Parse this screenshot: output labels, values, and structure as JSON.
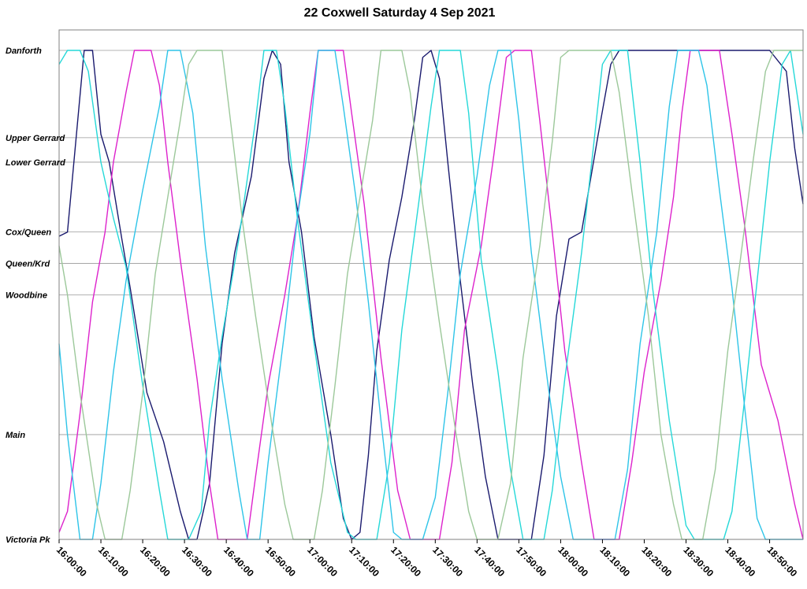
{
  "chart_data": {
    "type": "line",
    "title": "22 Coxwell Saturday 4 Sep 2021",
    "xlabel": "",
    "ylabel": "",
    "grid": true,
    "x_range": [
      "16:00:00",
      "18:58:00"
    ],
    "x_ticks": [
      "16:00:00",
      "16:10:00",
      "16:20:00",
      "16:30:00",
      "16:40:00",
      "16:50:00",
      "17:00:00",
      "17:10:00",
      "17:20:00",
      "17:30:00",
      "17:40:00",
      "17:50:00",
      "18:00:00",
      "18:10:00",
      "18:20:00",
      "18:30:00",
      "18:40:00",
      "18:50:00"
    ],
    "y_stops": [
      {
        "label": "Danforth",
        "km": 0.0
      },
      {
        "label": "Upper Gerrard",
        "km": 1.25
      },
      {
        "label": "Lower Gerrard",
        "km": 1.6
      },
      {
        "label": "Cox/Queen",
        "km": 2.6
      },
      {
        "label": "Queen/Krd",
        "km": 3.05
      },
      {
        "label": "Woodbine",
        "km": 3.5
      },
      {
        "label": "Main",
        "km": 5.5
      },
      {
        "label": "Victoria Pk",
        "km": 7.0
      }
    ],
    "series": [
      {
        "color": "#1a1a6e",
        "points": [
          [
            "16:00:00",
            2.66
          ],
          [
            "16:02:00",
            2.6
          ],
          [
            "16:06:00",
            0.0
          ],
          [
            "16:08:00",
            0.0
          ],
          [
            "16:10:00",
            1.2
          ],
          [
            "16:12:00",
            1.6
          ],
          [
            "16:15:00",
            2.7
          ],
          [
            "16:17:00",
            3.4
          ],
          [
            "16:21:00",
            4.9
          ],
          [
            "16:25:00",
            5.6
          ],
          [
            "16:29:00",
            6.6
          ],
          [
            "16:31:00",
            7.0
          ],
          [
            "16:33:00",
            7.0
          ],
          [
            "16:36:00",
            6.2
          ],
          [
            "16:39:00",
            4.2
          ],
          [
            "16:42:00",
            2.9
          ],
          [
            "16:46:00",
            1.8
          ],
          [
            "16:49:00",
            0.4
          ],
          [
            "16:51:00",
            0.0
          ],
          [
            "16:53:00",
            0.2
          ],
          [
            "16:55:00",
            1.6
          ],
          [
            "16:58:00",
            2.6
          ],
          [
            "17:01:00",
            4.1
          ],
          [
            "17:05:00",
            5.5
          ],
          [
            "17:08:00",
            6.7
          ],
          [
            "17:10:00",
            7.0
          ],
          [
            "17:12:00",
            6.9
          ],
          [
            "17:14:00",
            5.8
          ],
          [
            "17:16:00",
            4.3
          ],
          [
            "17:19:00",
            3.0
          ],
          [
            "17:22:00",
            2.1
          ],
          [
            "17:25:00",
            1.0
          ],
          [
            "17:27:00",
            0.1
          ],
          [
            "17:29:00",
            0.0
          ],
          [
            "17:31:00",
            0.4
          ],
          [
            "17:33:00",
            1.6
          ],
          [
            "17:36:00",
            3.3
          ],
          [
            "17:39:00",
            4.8
          ],
          [
            "17:42:00",
            6.1
          ],
          [
            "17:45:00",
            7.0
          ],
          [
            "17:53:00",
            7.0
          ],
          [
            "17:56:00",
            5.8
          ],
          [
            "17:59:00",
            3.8
          ],
          [
            "18:02:00",
            2.7
          ],
          [
            "18:05:00",
            2.6
          ],
          [
            "18:09:00",
            1.2
          ],
          [
            "18:12:00",
            0.2
          ],
          [
            "18:14:00",
            0.0
          ],
          [
            "18:24:00",
            0.0
          ],
          [
            "18:30:00",
            0.0
          ],
          [
            "18:35:00",
            0.0
          ],
          [
            "18:43:00",
            0.0
          ],
          [
            "18:50:00",
            0.0
          ],
          [
            "18:54:00",
            0.3
          ],
          [
            "18:56:00",
            1.4
          ],
          [
            "18:58:00",
            2.2
          ]
        ]
      },
      {
        "color": "#dd22cc",
        "points": [
          [
            "16:00:00",
            6.9
          ],
          [
            "16:02:00",
            6.6
          ],
          [
            "16:05:00",
            5.2
          ],
          [
            "16:08:00",
            3.6
          ],
          [
            "16:11:00",
            2.6
          ],
          [
            "16:13:00",
            1.6
          ],
          [
            "16:16:00",
            0.6
          ],
          [
            "16:18:00",
            0.0
          ],
          [
            "16:22:00",
            0.0
          ],
          [
            "16:24:00",
            0.5
          ],
          [
            "16:26:00",
            1.6
          ],
          [
            "16:29:00",
            3.0
          ],
          [
            "16:33:00",
            4.7
          ],
          [
            "16:36:00",
            6.2
          ],
          [
            "16:38:00",
            7.0
          ],
          [
            "16:45:00",
            7.0
          ],
          [
            "16:47:00",
            6.1
          ],
          [
            "16:50:00",
            4.8
          ],
          [
            "16:54:00",
            3.5
          ],
          [
            "16:57:00",
            2.4
          ],
          [
            "17:00:00",
            0.9
          ],
          [
            "17:02:00",
            0.0
          ],
          [
            "17:08:00",
            0.0
          ],
          [
            "17:10:00",
            0.9
          ],
          [
            "17:13:00",
            2.2
          ],
          [
            "17:17:00",
            4.4
          ],
          [
            "17:21:00",
            6.3
          ],
          [
            "17:24:00",
            7.0
          ],
          [
            "17:31:00",
            7.0
          ],
          [
            "17:34:00",
            5.9
          ],
          [
            "17:37:00",
            4.0
          ],
          [
            "17:41:00",
            2.8
          ],
          [
            "17:44:00",
            1.5
          ],
          [
            "17:47:00",
            0.1
          ],
          [
            "17:49:00",
            0.0
          ],
          [
            "17:53:00",
            0.0
          ],
          [
            "17:55:00",
            1.0
          ],
          [
            "17:58:00",
            2.6
          ],
          [
            "18:01:00",
            4.3
          ],
          [
            "18:05:00",
            5.9
          ],
          [
            "18:08:00",
            7.0
          ],
          [
            "18:14:00",
            7.0
          ],
          [
            "18:17:00",
            5.9
          ],
          [
            "18:20:00",
            4.6
          ],
          [
            "18:24:00",
            3.3
          ],
          [
            "18:27:00",
            2.1
          ],
          [
            "18:29:00",
            0.9
          ],
          [
            "18:31:00",
            0.0
          ],
          [
            "18:38:00",
            0.0
          ],
          [
            "18:41:00",
            1.2
          ],
          [
            "18:44:00",
            2.5
          ],
          [
            "18:48:00",
            4.5
          ],
          [
            "18:52:00",
            5.3
          ],
          [
            "18:56:00",
            6.5
          ],
          [
            "18:58:00",
            7.0
          ]
        ]
      },
      {
        "color": "#25d8d8",
        "points": [
          [
            "16:00:00",
            0.2
          ],
          [
            "16:02:00",
            0.0
          ],
          [
            "16:05:00",
            0.0
          ],
          [
            "16:07:00",
            0.3
          ],
          [
            "16:10:00",
            1.6
          ],
          [
            "16:13:00",
            2.4
          ],
          [
            "16:16:00",
            3.1
          ],
          [
            "16:20:00",
            4.8
          ],
          [
            "16:24:00",
            6.3
          ],
          [
            "16:26:00",
            7.0
          ],
          [
            "16:31:00",
            7.0
          ],
          [
            "16:34:00",
            6.6
          ],
          [
            "16:36:00",
            5.3
          ],
          [
            "16:39:00",
            4.1
          ],
          [
            "16:43:00",
            2.7
          ],
          [
            "16:47:00",
            1.0
          ],
          [
            "16:49:00",
            0.0
          ],
          [
            "16:52:00",
            0.0
          ],
          [
            "16:54:00",
            0.8
          ],
          [
            "16:57:00",
            2.4
          ],
          [
            "17:01:00",
            4.2
          ],
          [
            "17:05:00",
            5.9
          ],
          [
            "17:09:00",
            6.9
          ],
          [
            "17:11:00",
            7.0
          ],
          [
            "17:16:00",
            7.0
          ],
          [
            "17:19:00",
            5.9
          ],
          [
            "17:22:00",
            4.0
          ],
          [
            "17:26:00",
            2.2
          ],
          [
            "17:29:00",
            0.8
          ],
          [
            "17:31:00",
            0.0
          ],
          [
            "17:36:00",
            0.0
          ],
          [
            "17:38:00",
            0.9
          ],
          [
            "17:41:00",
            3.0
          ],
          [
            "17:45:00",
            4.6
          ],
          [
            "17:48:00",
            6.0
          ],
          [
            "17:51:00",
            7.0
          ],
          [
            "17:56:00",
            7.0
          ],
          [
            "17:58:00",
            6.3
          ],
          [
            "18:01:00",
            4.7
          ],
          [
            "18:05:00",
            2.9
          ],
          [
            "18:08:00",
            1.3
          ],
          [
            "18:10:00",
            0.2
          ],
          [
            "18:12:00",
            0.0
          ],
          [
            "18:16:00",
            0.0
          ],
          [
            "18:19:00",
            1.6
          ],
          [
            "18:22:00",
            3.4
          ],
          [
            "18:26:00",
            5.3
          ],
          [
            "18:30:00",
            6.8
          ],
          [
            "18:32:00",
            7.0
          ],
          [
            "18:39:00",
            7.0
          ],
          [
            "18:41:00",
            6.6
          ],
          [
            "18:44:00",
            5.0
          ],
          [
            "18:47:00",
            3.3
          ],
          [
            "18:50:00",
            1.6
          ],
          [
            "18:53:00",
            0.2
          ],
          [
            "18:55:00",
            0.0
          ],
          [
            "18:58:00",
            1.2
          ]
        ]
      },
      {
        "color": "#2ec4e8",
        "points": [
          [
            "16:00:00",
            4.2
          ],
          [
            "16:02:00",
            5.5
          ],
          [
            "16:05:00",
            7.0
          ],
          [
            "16:08:00",
            7.0
          ],
          [
            "16:10:00",
            6.2
          ],
          [
            "16:13:00",
            4.6
          ],
          [
            "16:16:00",
            3.3
          ],
          [
            "16:20:00",
            2.0
          ],
          [
            "16:24:00",
            0.8
          ],
          [
            "16:26:00",
            0.0
          ],
          [
            "16:29:00",
            0.0
          ],
          [
            "16:32:00",
            0.9
          ],
          [
            "16:35:00",
            2.8
          ],
          [
            "16:39:00",
            4.7
          ],
          [
            "16:43:00",
            6.3
          ],
          [
            "16:45:00",
            7.0
          ],
          [
            "16:48:00",
            7.0
          ],
          [
            "16:50:00",
            5.9
          ],
          [
            "16:54:00",
            4.0
          ],
          [
            "16:57:00",
            2.4
          ],
          [
            "17:00:00",
            1.2
          ],
          [
            "17:02:00",
            0.0
          ],
          [
            "17:06:00",
            0.0
          ],
          [
            "17:08:00",
            0.8
          ],
          [
            "17:11:00",
            2.1
          ],
          [
            "17:14:00",
            3.6
          ],
          [
            "17:17:00",
            5.3
          ],
          [
            "17:20:00",
            6.9
          ],
          [
            "17:22:00",
            7.0
          ],
          [
            "17:27:00",
            7.0
          ],
          [
            "17:30:00",
            6.4
          ],
          [
            "17:33:00",
            4.9
          ],
          [
            "17:36:00",
            3.2
          ],
          [
            "17:40:00",
            1.8
          ],
          [
            "17:43:00",
            0.5
          ],
          [
            "17:45:00",
            0.0
          ],
          [
            "17:48:00",
            0.0
          ],
          [
            "17:50:00",
            1.0
          ],
          [
            "17:53:00",
            2.9
          ],
          [
            "17:57:00",
            4.8
          ],
          [
            "18:00:00",
            6.1
          ],
          [
            "18:03:00",
            7.0
          ],
          [
            "18:13:00",
            7.0
          ],
          [
            "18:16:00",
            6.0
          ],
          [
            "18:19:00",
            4.2
          ],
          [
            "18:23:00",
            2.6
          ],
          [
            "18:26:00",
            0.8
          ],
          [
            "18:28:00",
            0.0
          ],
          [
            "18:33:00",
            0.0
          ],
          [
            "18:35:00",
            0.5
          ],
          [
            "18:38:00",
            2.0
          ],
          [
            "18:41:00",
            3.4
          ],
          [
            "18:44:00",
            5.1
          ],
          [
            "18:47:00",
            6.7
          ],
          [
            "18:49:00",
            7.0
          ],
          [
            "18:58:00",
            7.0
          ]
        ]
      },
      {
        "color": "#9cc89a",
        "points": [
          [
            "16:00:00",
            2.8
          ],
          [
            "16:02:00",
            3.5
          ],
          [
            "16:05:00",
            4.9
          ],
          [
            "16:09:00",
            6.5
          ],
          [
            "16:11:00",
            7.0
          ],
          [
            "16:15:00",
            7.0
          ],
          [
            "16:17:00",
            6.3
          ],
          [
            "16:20:00",
            4.9
          ],
          [
            "16:23:00",
            3.2
          ],
          [
            "16:26:00",
            2.1
          ],
          [
            "16:29:00",
            1.0
          ],
          [
            "16:31:00",
            0.2
          ],
          [
            "16:33:00",
            0.0
          ],
          [
            "16:39:00",
            0.0
          ],
          [
            "16:41:00",
            1.0
          ],
          [
            "16:44:00",
            2.5
          ],
          [
            "16:47:00",
            3.8
          ],
          [
            "16:51:00",
            5.4
          ],
          [
            "16:54:00",
            6.5
          ],
          [
            "16:56:00",
            7.0
          ],
          [
            "17:01:00",
            7.0
          ],
          [
            "17:03:00",
            6.3
          ],
          [
            "17:06:00",
            4.8
          ],
          [
            "17:09:00",
            3.2
          ],
          [
            "17:12:00",
            2.1
          ],
          [
            "17:15:00",
            1.0
          ],
          [
            "17:17:00",
            0.0
          ],
          [
            "17:22:00",
            0.0
          ],
          [
            "17:24:00",
            0.6
          ],
          [
            "17:27:00",
            2.2
          ],
          [
            "17:31:00",
            3.9
          ],
          [
            "17:35:00",
            5.5
          ],
          [
            "17:38:00",
            6.6
          ],
          [
            "17:40:00",
            7.0
          ],
          [
            "17:45:00",
            7.0
          ],
          [
            "17:48:00",
            6.2
          ],
          [
            "17:51:00",
            4.4
          ],
          [
            "17:55:00",
            2.8
          ],
          [
            "17:58:00",
            1.3
          ],
          [
            "18:00:00",
            0.1
          ],
          [
            "18:02:00",
            0.0
          ],
          [
            "18:12:00",
            0.0
          ],
          [
            "18:14:00",
            0.6
          ],
          [
            "18:17:00",
            2.0
          ],
          [
            "18:21:00",
            3.8
          ],
          [
            "18:24:00",
            5.5
          ],
          [
            "18:27:00",
            6.5
          ],
          [
            "18:29:00",
            7.0
          ],
          [
            "18:34:00",
            7.0
          ],
          [
            "18:37:00",
            6.0
          ],
          [
            "18:40:00",
            4.3
          ],
          [
            "18:43:00",
            3.0
          ],
          [
            "18:46:00",
            1.6
          ],
          [
            "18:49:00",
            0.3
          ],
          [
            "18:51:00",
            0.0
          ],
          [
            "18:58:00",
            0.0
          ]
        ]
      }
    ]
  }
}
